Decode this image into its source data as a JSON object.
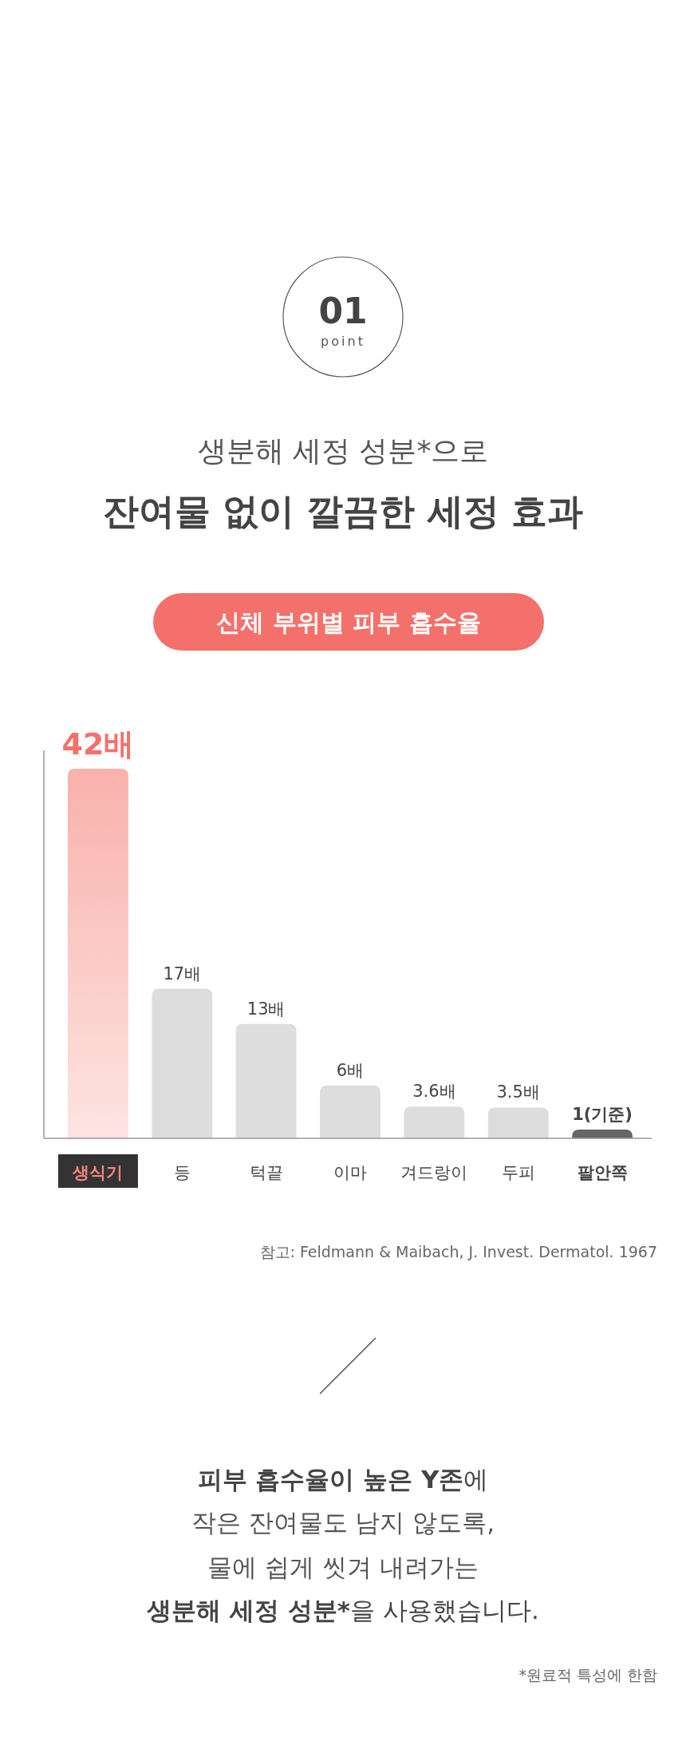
{
  "chart_data": {
    "type": "bar",
    "title": "신체 부위별 피부 흡수율",
    "categories": [
      "생식기",
      "등",
      "턱끝",
      "이마",
      "겨드랑이",
      "두피",
      "팔안쪽"
    ],
    "values": [
      42,
      17,
      13,
      6,
      3.6,
      3.5,
      1
    ],
    "colors": [
      "#f9b1ab",
      "#dddddd",
      "#dddddd",
      "#dddddd",
      "#dddddd",
      "#dddddd",
      "#666666"
    ],
    "value_labels": [
      "42배",
      "17배",
      "13배",
      "6배",
      "3.6배",
      "3.5배",
      "1(기준)"
    ],
    "annotations": [
      "01",
      "point",
      "생분해 세정 성분*으로",
      "잔여물 없이 깔끔한 세정 효과",
      "참고: Feldmann & Maibach, J. Invest. Dermatol. 1967",
      "피부 흡수율이 높은 Y존",
      "에",
      "작은 잔여물도 남지 않도록,",
      "물에 쉽게 씻겨 내려가는",
      "생분해 세정 성분*",
      "을 사용했습니다.",
      "*원료적 특성에 한함"
    ]
  }
}
